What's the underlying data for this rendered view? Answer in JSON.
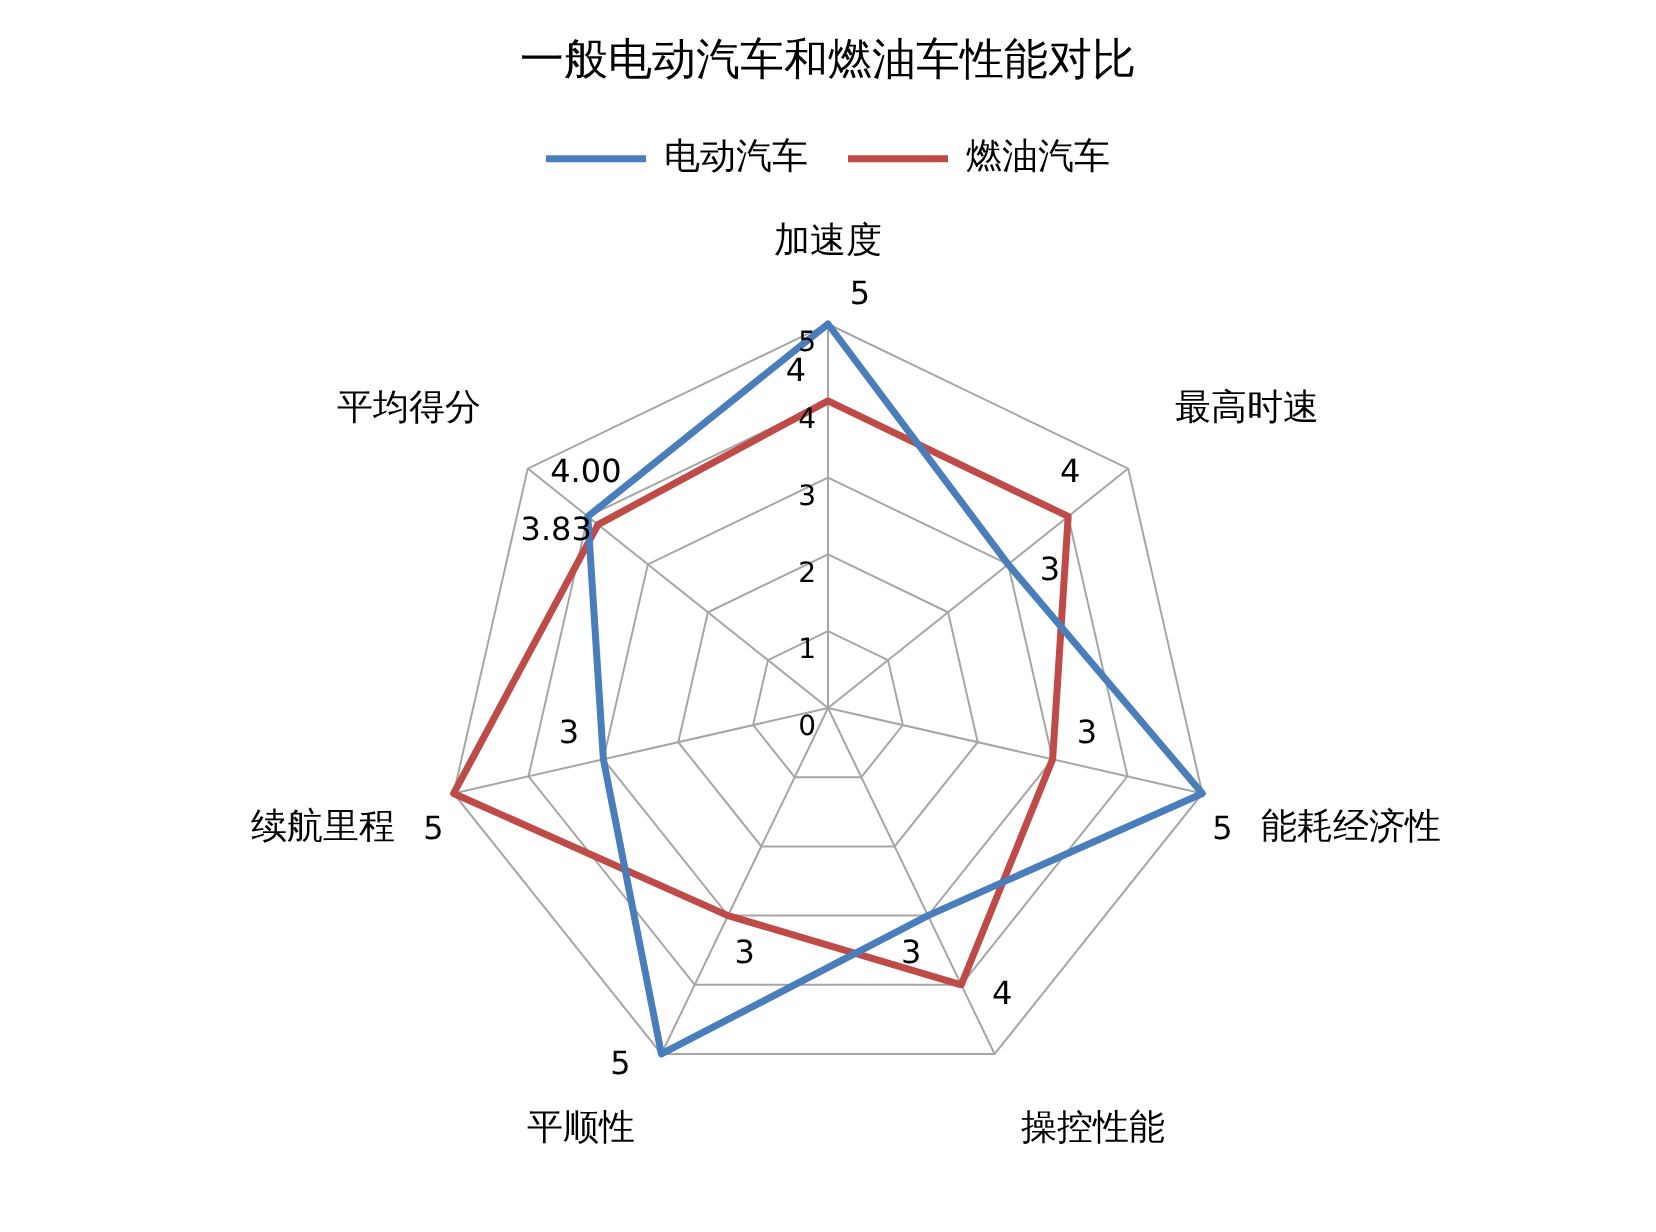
{
  "chart_data": {
    "type": "radar",
    "title": "一般电动汽车和燃油车性能对比",
    "categories": [
      "加速度",
      "最高时速",
      "能耗经济性",
      "操控性能",
      "平顺性",
      "续航里程",
      "平均得分"
    ],
    "series": [
      {
        "name": "电动汽车",
        "color": "#4a7ebb",
        "values": [
          5,
          3,
          5,
          3,
          5,
          3,
          4.0
        ],
        "value_labels": [
          "5",
          "3",
          "5",
          "3",
          "5",
          "3",
          "4.00"
        ]
      },
      {
        "name": "燃油汽车",
        "color": "#be4b48",
        "values": [
          4,
          4,
          3,
          4,
          3,
          5,
          3.83
        ],
        "value_labels": [
          "4",
          "4",
          "3",
          "4",
          "3",
          "5",
          "3.83"
        ]
      }
    ],
    "ylim": [
      0,
      5
    ],
    "yticks": [
      0,
      1,
      2,
      3,
      4,
      5
    ],
    "grid": true,
    "legend": "top",
    "marker": "none"
  }
}
